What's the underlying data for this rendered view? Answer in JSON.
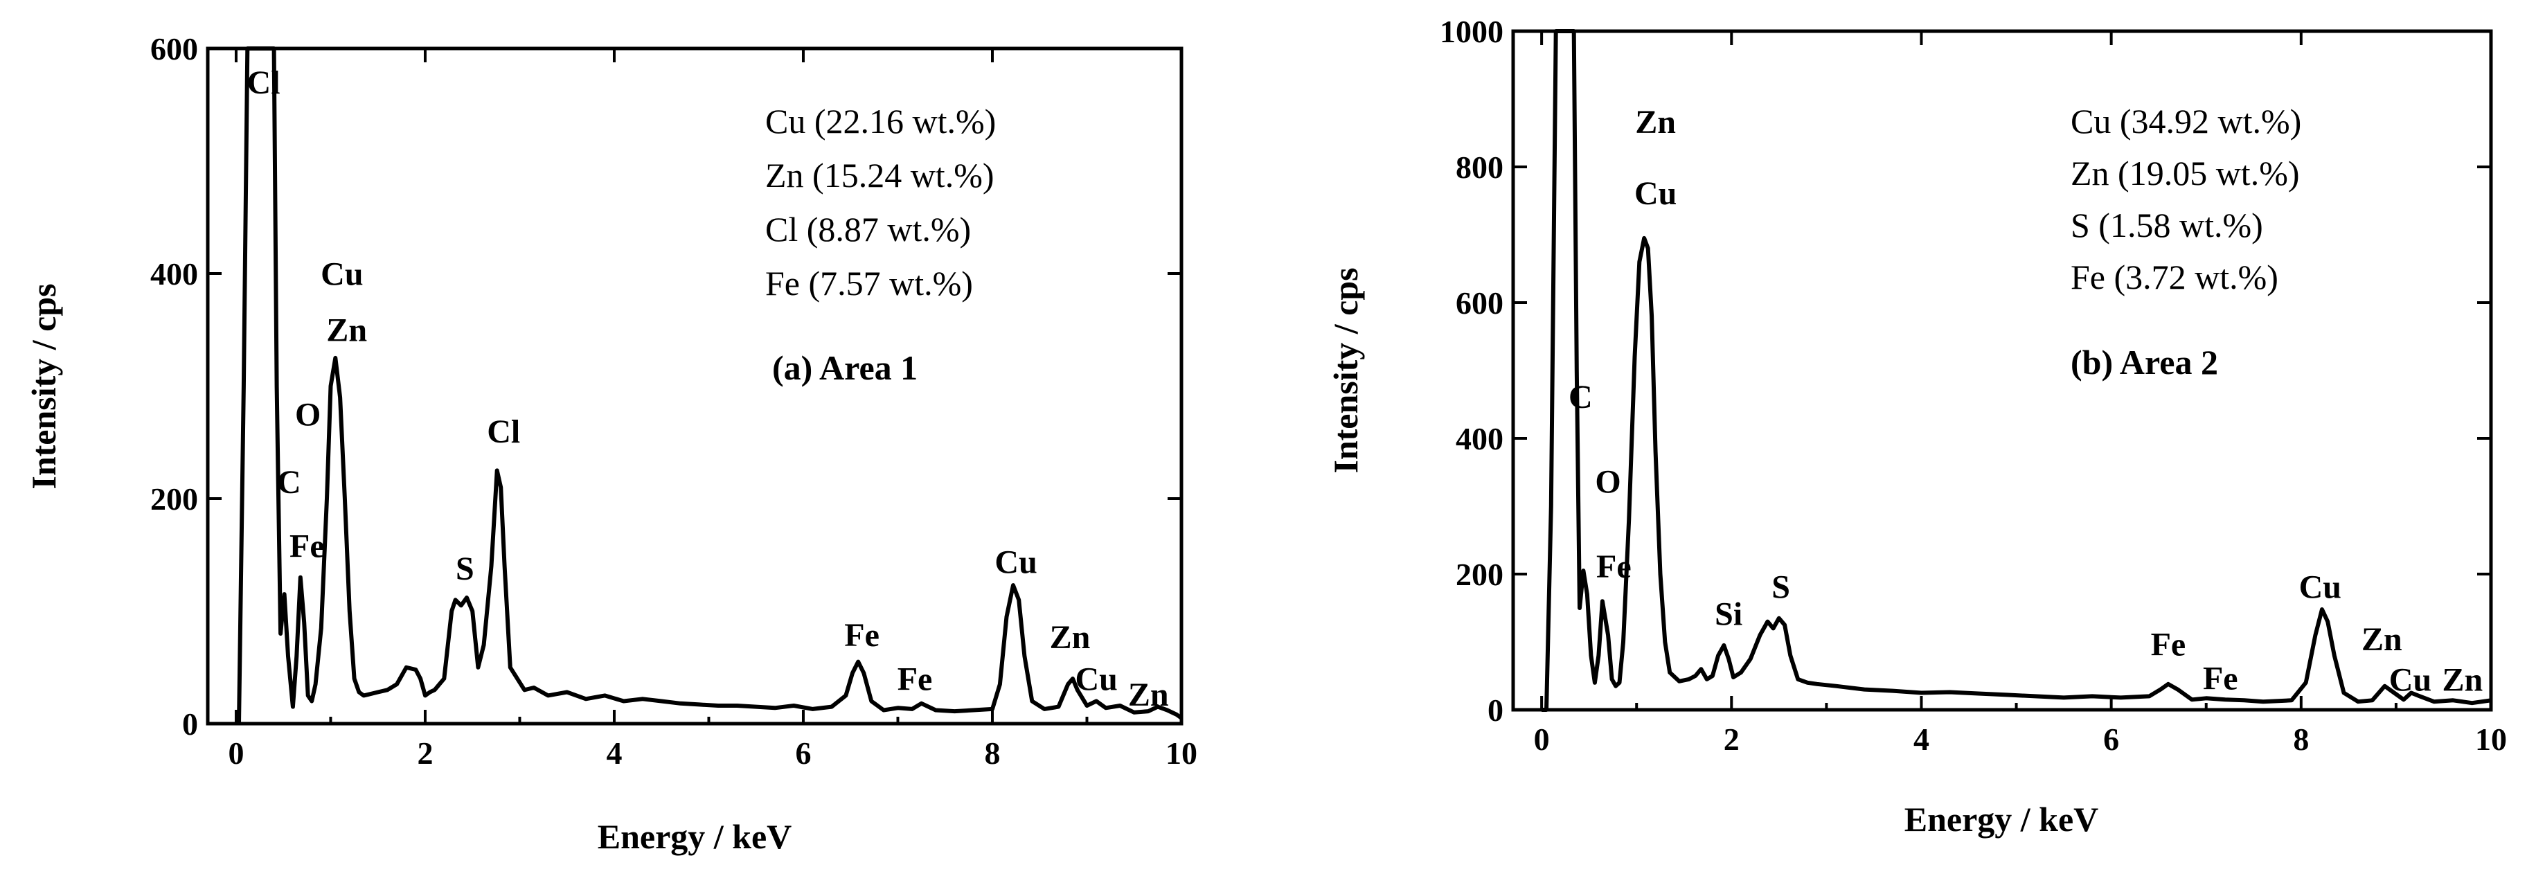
{
  "chart_data": [
    {
      "type": "line",
      "panel_label": "(a) Area 1",
      "xlabel": "Energy / keV",
      "ylabel": "Intensity / cps",
      "xlim": [
        -0.3,
        10
      ],
      "ylim": [
        0,
        600
      ],
      "xticks": [
        0,
        2,
        4,
        6,
        8,
        10
      ],
      "yticks": [
        0,
        200,
        400,
        600
      ],
      "xtick_labels": [
        "0",
        "2",
        "4",
        "6",
        "8",
        "10"
      ],
      "ytick_labels": [
        "0",
        "200",
        "400",
        "600"
      ],
      "composition": [
        "Cu (22.16 wt.%)",
        "Zn (15.24 wt.%)",
        "Cl (8.87 wt.%)",
        "Fe (7.57 wt.%)"
      ],
      "peak_labels": [
        {
          "text": "Cl",
          "energy": 0.29,
          "intensity": 560
        },
        {
          "text": "Cu",
          "energy": 1.12,
          "intensity": 390
        },
        {
          "text": "Zn",
          "energy": 1.17,
          "intensity": 340
        },
        {
          "text": "O",
          "energy": 0.76,
          "intensity": 265
        },
        {
          "text": "C",
          "energy": 0.56,
          "intensity": 205
        },
        {
          "text": "Fe",
          "energy": 0.75,
          "intensity": 148
        },
        {
          "text": "Cl",
          "energy": 2.83,
          "intensity": 250
        },
        {
          "text": "S",
          "energy": 2.42,
          "intensity": 128
        },
        {
          "text": "Fe",
          "energy": 6.62,
          "intensity": 69
        },
        {
          "text": "Fe",
          "energy": 7.18,
          "intensity": 30
        },
        {
          "text": "Cu",
          "energy": 8.25,
          "intensity": 134
        },
        {
          "text": "Zn",
          "energy": 8.82,
          "intensity": 67
        },
        {
          "text": "Cu",
          "energy": 9.1,
          "intensity": 30
        },
        {
          "text": "Zn",
          "energy": 9.65,
          "intensity": 16
        }
      ],
      "series": [
        {
          "name": "Area 1 spectrum",
          "x": [
            0.03,
            0.08,
            0.12,
            0.2,
            0.3,
            0.36,
            0.4,
            0.43,
            0.47,
            0.51,
            0.55,
            0.6,
            0.64,
            0.68,
            0.72,
            0.76,
            0.8,
            0.84,
            0.9,
            0.96,
            1.0,
            1.05,
            1.1,
            1.15,
            1.2,
            1.25,
            1.3,
            1.35,
            1.4,
            1.5,
            1.6,
            1.7,
            1.8,
            1.9,
            1.95,
            2.0,
            2.05,
            2.1,
            2.2,
            2.28,
            2.32,
            2.38,
            2.44,
            2.5,
            2.56,
            2.62,
            2.7,
            2.76,
            2.8,
            2.84,
            2.9,
            2.96,
            3.05,
            3.15,
            3.3,
            3.5,
            3.7,
            3.9,
            4.1,
            4.3,
            4.5,
            4.7,
            4.9,
            5.1,
            5.3,
            5.5,
            5.7,
            5.9,
            6.1,
            6.3,
            6.45,
            6.52,
            6.58,
            6.64,
            6.72,
            6.85,
            7.0,
            7.15,
            7.25,
            7.4,
            7.6,
            7.8,
            8.0,
            8.08,
            8.15,
            8.22,
            8.28,
            8.34,
            8.42,
            8.55,
            8.7,
            8.8,
            8.85,
            8.9,
            9.0,
            9.1,
            9.2,
            9.35,
            9.5,
            9.65,
            9.75,
            9.85,
            9.95,
            10.0
          ],
          "y": [
            0,
            300,
            600,
            600,
            600,
            600,
            600,
            300,
            80,
            115,
            60,
            15,
            60,
            130,
            90,
            25,
            20,
            35,
            85,
            200,
            300,
            325,
            290,
            200,
            100,
            40,
            28,
            25,
            26,
            28,
            30,
            35,
            50,
            48,
            40,
            25,
            28,
            30,
            40,
            100,
            110,
            105,
            112,
            100,
            50,
            70,
            140,
            225,
            210,
            140,
            50,
            42,
            30,
            32,
            25,
            28,
            22,
            25,
            20,
            22,
            20,
            18,
            17,
            16,
            16,
            15,
            14,
            16,
            13,
            15,
            25,
            45,
            55,
            45,
            20,
            12,
            14,
            13,
            18,
            12,
            11,
            12,
            13,
            35,
            95,
            123,
            110,
            60,
            20,
            13,
            15,
            35,
            40,
            30,
            16,
            20,
            14,
            16,
            10,
            11,
            15,
            12,
            8,
            5
          ]
        }
      ]
    },
    {
      "type": "line",
      "panel_label": "(b) Area 2",
      "xlabel": "Energy / keV",
      "ylabel": "Intensity / cps",
      "xlim": [
        -0.3,
        10
      ],
      "ylim": [
        0,
        1000
      ],
      "xticks": [
        0,
        2,
        4,
        6,
        8,
        10
      ],
      "yticks": [
        0,
        200,
        400,
        600,
        800,
        1000
      ],
      "xtick_labels": [
        "0",
        "2",
        "4",
        "6",
        "8",
        "10"
      ],
      "ytick_labels": [
        "0",
        "200",
        "400",
        "600",
        "800",
        "1000"
      ],
      "composition": [
        "Cu (34.92 wt.%)",
        "Zn (19.05 wt.%)",
        "S (1.58 wt.%)",
        "Fe (3.72 wt.%)"
      ],
      "peak_labels": [
        {
          "text": "Zn",
          "energy": 1.2,
          "intensity": 850
        },
        {
          "text": "Cu",
          "energy": 1.2,
          "intensity": 745
        },
        {
          "text": "C",
          "energy": 0.41,
          "intensity": 445
        },
        {
          "text": "O",
          "energy": 0.7,
          "intensity": 320
        },
        {
          "text": "Fe",
          "energy": 0.76,
          "intensity": 195
        },
        {
          "text": "Si",
          "energy": 1.97,
          "intensity": 125
        },
        {
          "text": "S",
          "energy": 2.52,
          "intensity": 165
        },
        {
          "text": "Fe",
          "energy": 6.6,
          "intensity": 80
        },
        {
          "text": "Fe",
          "energy": 7.15,
          "intensity": 30
        },
        {
          "text": "Cu",
          "energy": 8.2,
          "intensity": 165
        },
        {
          "text": "Zn",
          "energy": 8.85,
          "intensity": 88
        },
        {
          "text": "Cu",
          "energy": 9.15,
          "intensity": 28
        },
        {
          "text": "Zn",
          "energy": 9.7,
          "intensity": 28
        }
      ],
      "series": [
        {
          "name": "Area 2 spectrum",
          "x": [
            0.0,
            0.05,
            0.1,
            0.15,
            0.22,
            0.3,
            0.34,
            0.37,
            0.4,
            0.44,
            0.48,
            0.52,
            0.56,
            0.6,
            0.64,
            0.7,
            0.74,
            0.78,
            0.82,
            0.86,
            0.92,
            0.98,
            1.03,
            1.08,
            1.12,
            1.16,
            1.2,
            1.25,
            1.3,
            1.35,
            1.45,
            1.55,
            1.62,
            1.68,
            1.74,
            1.8,
            1.86,
            1.92,
            1.97,
            2.02,
            2.1,
            2.2,
            2.3,
            2.38,
            2.44,
            2.5,
            2.56,
            2.62,
            2.7,
            2.8,
            2.9,
            3.1,
            3.4,
            3.7,
            4.0,
            4.3,
            4.6,
            4.9,
            5.2,
            5.5,
            5.8,
            6.1,
            6.4,
            6.52,
            6.6,
            6.7,
            6.85,
            7.0,
            7.2,
            7.4,
            7.6,
            7.9,
            8.05,
            8.15,
            8.22,
            8.28,
            8.35,
            8.45,
            8.6,
            8.75,
            8.88,
            8.98,
            9.08,
            9.16,
            9.25,
            9.4,
            9.6,
            9.8,
            10.0
          ],
          "y": [
            0,
            0,
            300,
            1000,
            1000,
            1000,
            1000,
            500,
            150,
            205,
            170,
            80,
            40,
            80,
            160,
            110,
            45,
            35,
            40,
            100,
            280,
            520,
            660,
            695,
            680,
            580,
            380,
            200,
            100,
            55,
            42,
            45,
            50,
            60,
            45,
            50,
            80,
            95,
            75,
            48,
            55,
            75,
            110,
            130,
            120,
            135,
            125,
            80,
            45,
            40,
            38,
            35,
            30,
            28,
            25,
            26,
            24,
            22,
            20,
            18,
            20,
            18,
            20,
            30,
            38,
            30,
            15,
            17,
            15,
            14,
            12,
            14,
            40,
            110,
            148,
            130,
            80,
            25,
            12,
            14,
            35,
            25,
            15,
            25,
            20,
            12,
            14,
            10,
            14
          ]
        }
      ]
    }
  ]
}
